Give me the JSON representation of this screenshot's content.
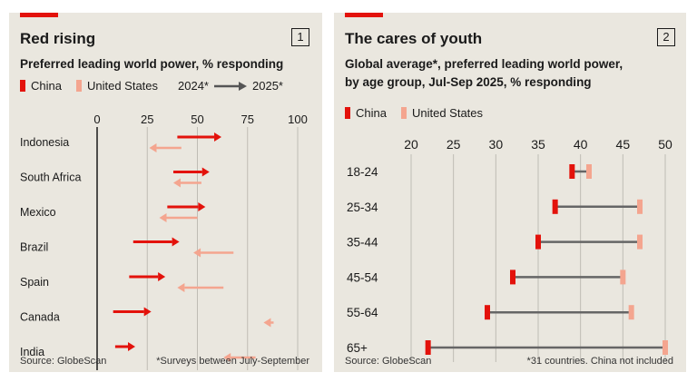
{
  "colors": {
    "china": "#e3120b",
    "us": "#f4a58f",
    "connector": "#666666",
    "axis": "#1a1a1a",
    "grid": "#bfbcb4",
    "panel_bg": "#eae7df"
  },
  "left_panel": {
    "title": "Red rising",
    "number": "1",
    "subtitle": "Preferred leading world power, % responding",
    "legend": {
      "china": "China",
      "us": "United States",
      "year_start": "2024*",
      "year_end": "2025*",
      "arrow_icon": "right-arrow-icon"
    },
    "source": "Source: GlobeScan",
    "footnote": "*Surveys between July-September"
  },
  "right_panel": {
    "title": "The cares of youth",
    "number": "2",
    "subtitle_lines": [
      "Global average*, preferred leading world power,",
      "by age group, Jul-Sep 2025, % responding"
    ],
    "legend": {
      "china": "China",
      "us": "United States"
    },
    "source": "Source: GlobeScan",
    "footnote": "*31 countries. China not included"
  },
  "chart_data": [
    {
      "type": "arrow-dot",
      "title": "Red rising",
      "subtitle": "Preferred leading world power, % responding",
      "xlim": [
        0,
        100
      ],
      "xticks": [
        0,
        25,
        50,
        75,
        100
      ],
      "categories": [
        "Indonesia",
        "South Africa",
        "Mexico",
        "Brazil",
        "Spain",
        "Canada",
        "India"
      ],
      "series": [
        {
          "name": "China",
          "from_label": "2024*",
          "to_label": "2025*",
          "from": [
            40,
            38,
            35,
            18,
            16,
            8,
            9
          ],
          "to": [
            62,
            56,
            54,
            41,
            34,
            27,
            19
          ]
        },
        {
          "name": "United States",
          "from_label": "2024*",
          "to_label": "2025*",
          "from": [
            42,
            52,
            50,
            68,
            63,
            88,
            79
          ],
          "to": [
            26,
            38,
            31,
            48,
            40,
            83,
            63
          ]
        }
      ]
    },
    {
      "type": "dot-range",
      "title": "The cares of youth",
      "xlim": [
        20,
        50
      ],
      "xticks": [
        20,
        25,
        30,
        35,
        40,
        45,
        50
      ],
      "categories": [
        "18-24",
        "25-34",
        "35-44",
        "45-54",
        "55-64",
        "65+"
      ],
      "series": [
        {
          "name": "China",
          "values": [
            39,
            37,
            35,
            32,
            29,
            22
          ]
        },
        {
          "name": "United States",
          "values": [
            41,
            47,
            47,
            45,
            46,
            50
          ]
        }
      ]
    }
  ]
}
